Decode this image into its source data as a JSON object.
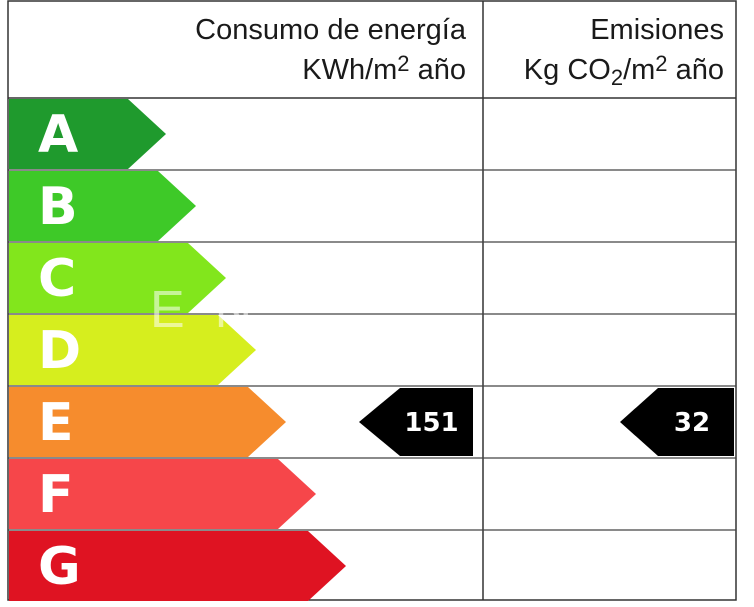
{
  "header": {
    "energy_title": "Consumo de energía",
    "energy_unit_prefix": "KWh/m",
    "energy_unit_exp": "2",
    "energy_unit_suffix": " año",
    "emissions_title": "Emisiones",
    "emissions_unit_prefix": "Kg CO",
    "emissions_unit_sub": "2",
    "emissions_unit_mid": "/m",
    "emissions_unit_exp": "2",
    "emissions_unit_suffix": " año"
  },
  "classes": [
    {
      "letter": "A",
      "color": "#1f9a2d"
    },
    {
      "letter": "B",
      "color": "#3ec928"
    },
    {
      "letter": "C",
      "color": "#82e61c"
    },
    {
      "letter": "D",
      "color": "#d6ee1e"
    },
    {
      "letter": "E",
      "color": "#f68c2d"
    },
    {
      "letter": "F",
      "color": "#f6464a"
    },
    {
      "letter": "G",
      "color": "#df1322"
    }
  ],
  "rating": {
    "class": "E",
    "energy_value": "151",
    "emissions_value": "32",
    "tag_color": "#000000"
  },
  "watermark": "EN"
}
